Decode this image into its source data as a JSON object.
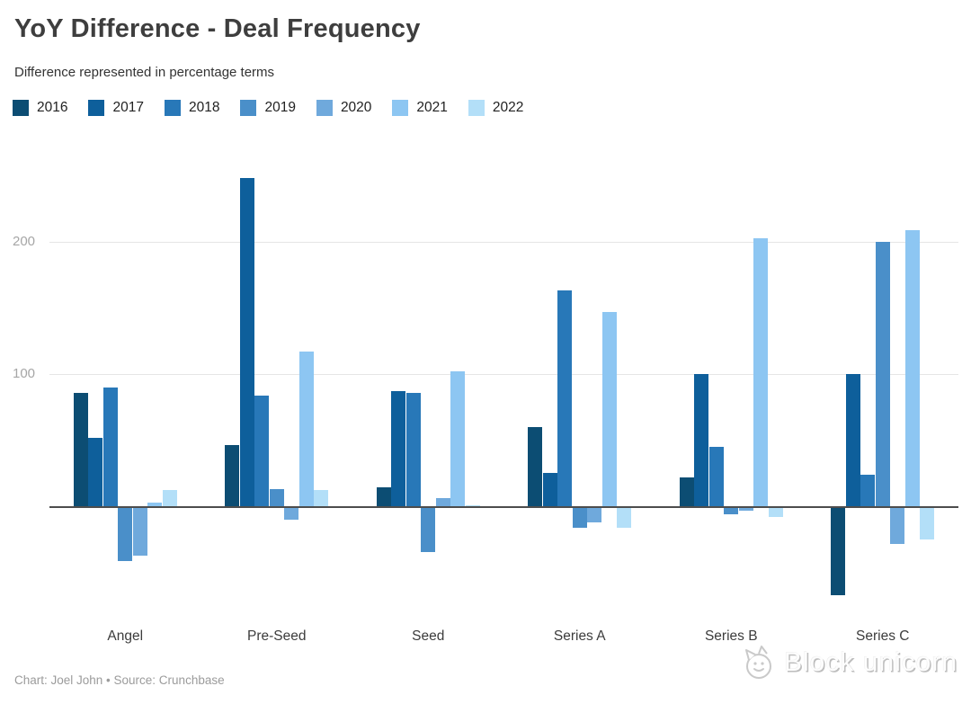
{
  "header": {
    "title": "YoY Difference - Deal Frequency",
    "subtitle": "Difference represented in percentage terms"
  },
  "chart_data": {
    "type": "bar",
    "categories": [
      "Angel",
      "Pre-Seed",
      "Seed",
      "Series A",
      "Series B",
      "Series C"
    ],
    "series": [
      {
        "name": "2016",
        "color": "#0c4d73",
        "values": [
          86,
          46,
          14,
          60,
          22,
          -66
        ]
      },
      {
        "name": "2017",
        "color": "#0e5f9b",
        "values": [
          52,
          248,
          87,
          25,
          100,
          100
        ]
      },
      {
        "name": "2018",
        "color": "#2878b8",
        "values": [
          90,
          84,
          86,
          163,
          45,
          24
        ]
      },
      {
        "name": "2019",
        "color": "#4a8fc9",
        "values": [
          -40,
          13,
          -33,
          -15,
          -5,
          200
        ]
      },
      {
        "name": "2020",
        "color": "#6fa9dc",
        "values": [
          -36,
          -9,
          6,
          -11,
          -2,
          -27
        ]
      },
      {
        "name": "2021",
        "color": "#8dc6f2",
        "values": [
          3,
          117,
          102,
          147,
          203,
          209
        ]
      },
      {
        "name": "2022",
        "color": "#b3dff8",
        "values": [
          12,
          12,
          1,
          -15,
          -7,
          -24
        ]
      }
    ],
    "yticks": [
      100,
      200
    ],
    "ylim": [
      -100,
      267
    ],
    "grid": "horizontal",
    "legend_position": "top-left",
    "axis_color": "#4d4d4d",
    "gridline_color": "#e6e6e6",
    "tick_label_color": "#a6a6a6"
  },
  "footer": {
    "credit": "Chart: Joel John • Source: Crunchbase"
  },
  "watermark": {
    "text": "Block unicorn"
  }
}
